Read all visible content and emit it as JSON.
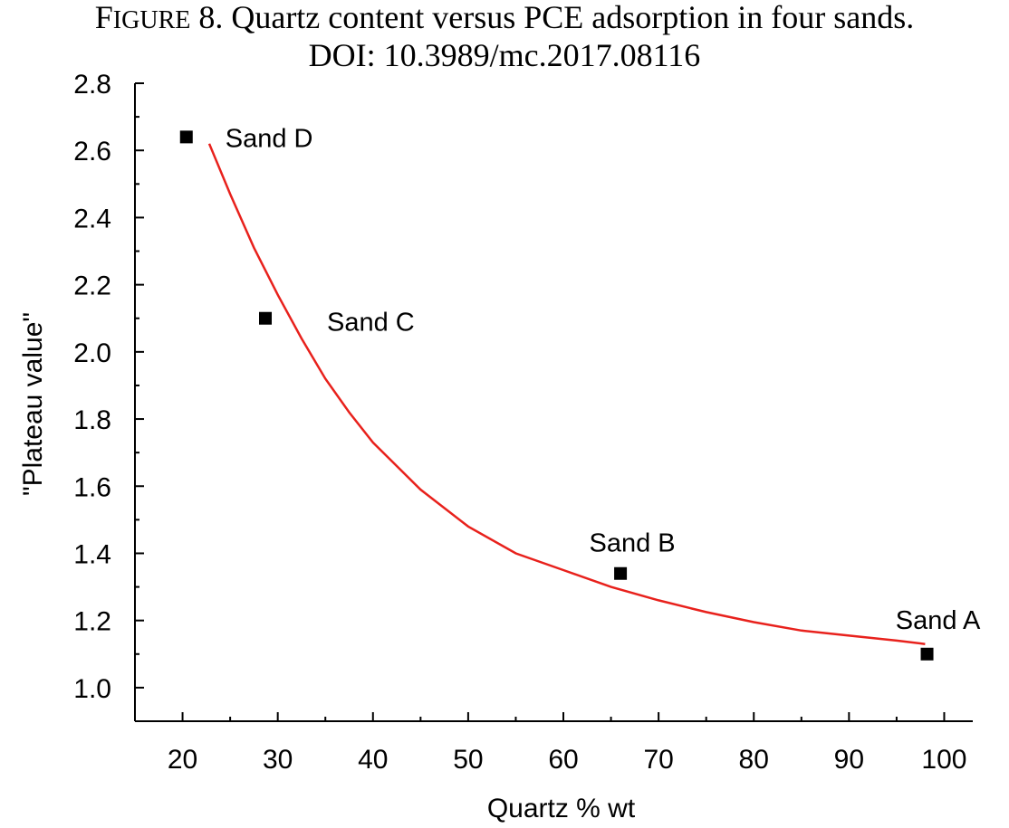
{
  "caption": {
    "figure_word_initial": "F",
    "figure_word_rest": "IGURE",
    "figure_rest": " 8. Quartz content versus PCE adsorption in four sands.",
    "doi": "DOI: 10.3989/mc.2017.08116"
  },
  "chart_data": {
    "type": "scatter",
    "title": "",
    "xlabel": "Quartz % wt",
    "ylabel": "\"Plateau value\"",
    "xlim": [
      15,
      103
    ],
    "ylim": [
      0.9,
      2.8
    ],
    "x_ticks": [
      20,
      30,
      40,
      50,
      60,
      70,
      80,
      90,
      100
    ],
    "y_ticks": [
      1.0,
      1.2,
      1.4,
      1.6,
      1.8,
      2.0,
      2.2,
      2.4,
      2.6,
      2.8
    ],
    "x_tick_labels": [
      "20",
      "30",
      "40",
      "50",
      "60",
      "70",
      "80",
      "90",
      "100"
    ],
    "y_tick_labels": [
      "1.0",
      "1.2",
      "1.4",
      "1.6",
      "1.8",
      "2.0",
      "2.2",
      "2.4",
      "2.6",
      "2.8"
    ],
    "points": [
      {
        "label": "Sand D",
        "x": 20.4,
        "y": 2.64
      },
      {
        "label": "Sand C",
        "x": 28.7,
        "y": 2.1
      },
      {
        "label": "Sand B",
        "x": 66.0,
        "y": 1.34
      },
      {
        "label": "Sand A",
        "x": 98.2,
        "y": 1.1
      }
    ],
    "fit_curve": {
      "color": "#e8211c",
      "x": [
        22.8,
        25,
        27.5,
        30,
        32.5,
        35,
        37.5,
        40,
        45,
        50,
        55,
        60,
        65,
        70,
        75,
        80,
        85,
        90,
        95,
        98
      ],
      "y": [
        2.62,
        2.47,
        2.31,
        2.17,
        2.04,
        1.92,
        1.82,
        1.73,
        1.59,
        1.48,
        1.4,
        1.35,
        1.3,
        1.26,
        1.225,
        1.195,
        1.17,
        1.155,
        1.14,
        1.13
      ]
    },
    "marker_color": "#000000",
    "grid": false
  }
}
